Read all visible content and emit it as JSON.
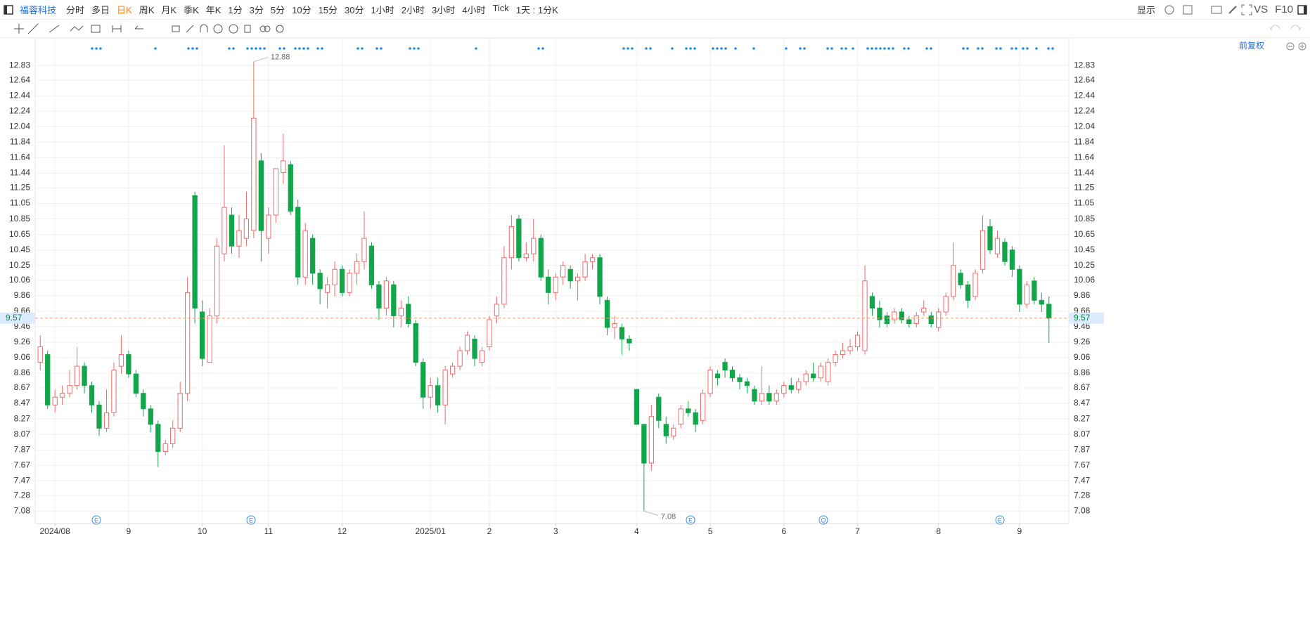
{
  "toolbar": {
    "stock": "福蓉科技",
    "periods": [
      "分时",
      "多日",
      "日K",
      "周K",
      "月K",
      "季K",
      "年K",
      "1分",
      "3分",
      "5分",
      "10分",
      "15分",
      "30分",
      "1小时",
      "2小时",
      "3小时",
      "4小时",
      "Tick"
    ],
    "active": "日K",
    "range": "1天 : 1分K",
    "display": "显示",
    "vs": "VS",
    "f10": "F10",
    "adjust": "前复权"
  },
  "events": [
    "E",
    "E",
    "E",
    "Q",
    "E"
  ],
  "chart_data": {
    "type": "candlestick",
    "up_color": "#ee6b6b",
    "down_color": "#12a54a",
    "price_line_color": "#f0a070",
    "grid": true,
    "ylim": [
      6.92,
      13.24
    ],
    "yticks": [
      7.08,
      7.28,
      7.47,
      7.67,
      7.87,
      8.07,
      8.27,
      8.47,
      8.67,
      8.86,
      9.06,
      9.26,
      9.46,
      9.66,
      9.86,
      10.06,
      10.25,
      10.45,
      10.65,
      10.85,
      11.05,
      11.25,
      11.44,
      11.64,
      11.84,
      12.04,
      12.24,
      12.44,
      12.64,
      12.83
    ],
    "categories": [
      null,
      null,
      "2024/08",
      null,
      null,
      null,
      null,
      null,
      null,
      null,
      null,
      null,
      "9",
      null,
      null,
      null,
      null,
      null,
      null,
      null,
      null,
      null,
      "10",
      null,
      null,
      null,
      null,
      null,
      null,
      null,
      null,
      "11",
      null,
      null,
      null,
      null,
      null,
      null,
      null,
      null,
      null,
      "12",
      null,
      null,
      null,
      null,
      null,
      null,
      null,
      null,
      null,
      null,
      null,
      "2025/01",
      null,
      null,
      null,
      null,
      null,
      null,
      null,
      "2",
      null,
      null,
      null,
      null,
      null,
      null,
      null,
      null,
      "3",
      null,
      null,
      null,
      null,
      null,
      null,
      null,
      null,
      null,
      null,
      "4",
      null,
      null,
      null,
      null,
      null,
      null,
      null,
      null,
      null,
      "5",
      null,
      null,
      null,
      null,
      null,
      null,
      null,
      null,
      null,
      "6",
      null,
      null,
      null,
      null,
      null,
      null,
      null,
      null,
      null,
      "7",
      null,
      null,
      null,
      null,
      null,
      null,
      null,
      null,
      null,
      null,
      "8",
      null,
      null,
      null,
      null,
      null,
      null,
      null,
      null,
      null,
      null,
      "9",
      null,
      null,
      null,
      null
    ],
    "candles": [
      [
        9.0,
        9.35,
        8.9,
        9.2
      ],
      [
        9.1,
        9.15,
        8.4,
        8.45
      ],
      [
        8.45,
        8.65,
        8.35,
        8.55
      ],
      [
        8.55,
        8.7,
        8.45,
        8.6
      ],
      [
        8.6,
        8.9,
        8.55,
        8.7
      ],
      [
        8.7,
        9.2,
        8.65,
        8.95
      ],
      [
        8.95,
        9.0,
        8.6,
        8.7
      ],
      [
        8.7,
        8.75,
        8.35,
        8.45
      ],
      [
        8.45,
        8.5,
        8.05,
        8.15
      ],
      [
        8.15,
        8.65,
        8.1,
        8.35
      ],
      [
        8.35,
        9.0,
        8.3,
        8.9
      ],
      [
        8.95,
        9.35,
        8.85,
        9.1
      ],
      [
        9.1,
        9.15,
        8.8,
        8.85
      ],
      [
        8.85,
        8.9,
        8.55,
        8.6
      ],
      [
        8.6,
        8.65,
        8.3,
        8.4
      ],
      [
        8.4,
        8.45,
        8.1,
        8.2
      ],
      [
        8.2,
        8.25,
        7.65,
        7.85
      ],
      [
        7.85,
        8.0,
        7.8,
        7.95
      ],
      [
        7.95,
        8.25,
        7.9,
        8.15
      ],
      [
        8.15,
        8.75,
        8.1,
        8.6
      ],
      [
        8.6,
        10.1,
        8.5,
        9.9
      ],
      [
        11.15,
        11.2,
        9.5,
        9.7
      ],
      [
        9.65,
        9.8,
        8.95,
        9.05
      ],
      [
        9.0,
        9.7,
        9.0,
        9.6
      ],
      [
        9.6,
        10.6,
        9.5,
        10.5
      ],
      [
        10.4,
        11.8,
        10.3,
        11.0
      ],
      [
        10.9,
        11.0,
        10.4,
        10.5
      ],
      [
        10.5,
        10.9,
        10.35,
        10.7
      ],
      [
        10.6,
        11.2,
        10.5,
        10.85
      ],
      [
        10.7,
        12.88,
        10.6,
        12.15
      ],
      [
        11.6,
        11.7,
        10.3,
        10.7
      ],
      [
        10.6,
        11.0,
        10.4,
        10.9
      ],
      [
        10.9,
        11.5,
        10.8,
        11.5
      ],
      [
        11.45,
        11.95,
        11.3,
        11.6
      ],
      [
        11.55,
        11.6,
        10.9,
        10.95
      ],
      [
        11.0,
        11.1,
        10.0,
        10.1
      ],
      [
        10.1,
        10.8,
        10.0,
        10.7
      ],
      [
        10.6,
        10.65,
        10.0,
        10.15
      ],
      [
        10.15,
        10.2,
        9.75,
        9.95
      ],
      [
        9.9,
        10.1,
        9.7,
        10.0
      ],
      [
        10.0,
        10.3,
        9.85,
        10.2
      ],
      [
        10.2,
        10.25,
        9.85,
        9.9
      ],
      [
        9.9,
        10.2,
        9.85,
        10.15
      ],
      [
        10.15,
        10.4,
        10.0,
        10.3
      ],
      [
        10.3,
        10.95,
        10.2,
        10.6
      ],
      [
        10.5,
        10.55,
        9.95,
        10.0
      ],
      [
        10.0,
        10.05,
        9.55,
        9.7
      ],
      [
        9.7,
        10.1,
        9.6,
        10.05
      ],
      [
        10.0,
        10.05,
        9.45,
        9.6
      ],
      [
        9.6,
        9.8,
        9.45,
        9.7
      ],
      [
        9.75,
        9.85,
        9.45,
        9.5
      ],
      [
        9.5,
        9.55,
        8.95,
        9.0
      ],
      [
        9.0,
        9.05,
        8.4,
        8.55
      ],
      [
        8.55,
        8.8,
        8.4,
        8.7
      ],
      [
        8.7,
        8.8,
        8.35,
        8.45
      ],
      [
        8.45,
        8.95,
        8.2,
        8.9
      ],
      [
        8.85,
        9.0,
        8.8,
        8.95
      ],
      [
        8.95,
        9.2,
        8.9,
        9.15
      ],
      [
        9.15,
        9.4,
        9.1,
        9.35
      ],
      [
        9.3,
        9.35,
        8.95,
        9.05
      ],
      [
        9.0,
        9.2,
        8.95,
        9.15
      ],
      [
        9.2,
        9.6,
        9.15,
        9.55
      ],
      [
        9.6,
        9.85,
        9.5,
        9.75
      ],
      [
        9.75,
        10.5,
        9.7,
        10.35
      ],
      [
        10.35,
        10.9,
        10.2,
        10.75
      ],
      [
        10.85,
        10.9,
        10.3,
        10.35
      ],
      [
        10.35,
        10.55,
        10.3,
        10.4
      ],
      [
        10.4,
        10.85,
        10.3,
        10.6
      ],
      [
        10.6,
        10.65,
        10.05,
        10.1
      ],
      [
        10.1,
        10.2,
        9.75,
        9.9
      ],
      [
        9.9,
        10.15,
        9.8,
        10.1
      ],
      [
        10.1,
        10.3,
        10.0,
        10.25
      ],
      [
        10.2,
        10.25,
        9.95,
        10.05
      ],
      [
        10.05,
        10.15,
        9.8,
        10.1
      ],
      [
        10.1,
        10.4,
        10.05,
        10.3
      ],
      [
        10.3,
        10.4,
        10.2,
        10.35
      ],
      [
        10.35,
        10.4,
        9.75,
        9.85
      ],
      [
        9.8,
        9.85,
        9.35,
        9.45
      ],
      [
        9.45,
        9.6,
        9.3,
        9.5
      ],
      [
        9.45,
        9.5,
        9.1,
        9.3
      ],
      [
        9.3,
        9.35,
        9.15,
        9.25
      ],
      [
        8.65,
        8.65,
        8.2,
        8.2
      ],
      [
        8.2,
        8.2,
        7.08,
        7.7
      ],
      [
        7.7,
        8.45,
        7.6,
        8.3
      ],
      [
        8.55,
        8.6,
        8.15,
        8.25
      ],
      [
        8.2,
        8.3,
        7.95,
        8.05
      ],
      [
        8.05,
        8.2,
        8.0,
        8.15
      ],
      [
        8.2,
        8.45,
        8.15,
        8.4
      ],
      [
        8.4,
        8.5,
        8.3,
        8.35
      ],
      [
        8.35,
        8.4,
        8.1,
        8.2
      ],
      [
        8.25,
        8.65,
        8.2,
        8.6
      ],
      [
        8.6,
        8.95,
        8.55,
        8.9
      ],
      [
        8.85,
        8.9,
        8.7,
        8.8
      ],
      [
        9.0,
        9.05,
        8.8,
        8.9
      ],
      [
        8.9,
        8.95,
        8.75,
        8.8
      ],
      [
        8.8,
        8.85,
        8.65,
        8.75
      ],
      [
        8.75,
        8.8,
        8.6,
        8.7
      ],
      [
        8.65,
        8.7,
        8.45,
        8.5
      ],
      [
        8.5,
        8.95,
        8.45,
        8.6
      ],
      [
        8.6,
        8.7,
        8.45,
        8.5
      ],
      [
        8.5,
        8.65,
        8.45,
        8.6
      ],
      [
        8.6,
        8.75,
        8.55,
        8.7
      ],
      [
        8.7,
        8.8,
        8.6,
        8.65
      ],
      [
        8.65,
        8.8,
        8.6,
        8.75
      ],
      [
        8.75,
        8.9,
        8.7,
        8.85
      ],
      [
        8.85,
        9.0,
        8.75,
        8.8
      ],
      [
        8.8,
        9.0,
        8.75,
        8.95
      ],
      [
        8.75,
        9.05,
        8.7,
        9.0
      ],
      [
        9.0,
        9.15,
        8.95,
        9.1
      ],
      [
        9.1,
        9.25,
        9.05,
        9.15
      ],
      [
        9.15,
        9.3,
        9.1,
        9.2
      ],
      [
        9.2,
        9.4,
        9.15,
        9.35
      ],
      [
        9.15,
        10.25,
        9.1,
        10.05
      ],
      [
        9.85,
        9.9,
        9.6,
        9.7
      ],
      [
        9.7,
        9.8,
        9.45,
        9.55
      ],
      [
        9.6,
        9.65,
        9.45,
        9.5
      ],
      [
        9.55,
        9.7,
        9.5,
        9.65
      ],
      [
        9.65,
        9.7,
        9.5,
        9.55
      ],
      [
        9.55,
        9.6,
        9.45,
        9.5
      ],
      [
        9.5,
        9.65,
        9.45,
        9.6
      ],
      [
        9.65,
        9.8,
        9.6,
        9.7
      ],
      [
        9.6,
        9.65,
        9.45,
        9.5
      ],
      [
        9.45,
        9.7,
        9.4,
        9.65
      ],
      [
        9.65,
        9.9,
        9.6,
        9.85
      ],
      [
        9.85,
        10.55,
        9.8,
        10.25
      ],
      [
        10.15,
        10.2,
        9.95,
        10.0
      ],
      [
        10.0,
        10.05,
        9.7,
        9.8
      ],
      [
        9.85,
        10.2,
        9.8,
        10.15
      ],
      [
        10.2,
        10.9,
        10.15,
        10.7
      ],
      [
        10.75,
        10.85,
        10.4,
        10.45
      ],
      [
        10.4,
        10.7,
        10.35,
        10.6
      ],
      [
        10.55,
        10.6,
        10.25,
        10.3
      ],
      [
        10.45,
        10.5,
        10.1,
        10.2
      ],
      [
        10.2,
        10.25,
        9.65,
        9.75
      ],
      [
        9.75,
        10.05,
        9.7,
        10.0
      ],
      [
        10.05,
        10.1,
        9.75,
        9.8
      ],
      [
        9.8,
        9.9,
        9.65,
        9.75
      ],
      [
        9.75,
        9.85,
        9.25,
        9.57
      ]
    ]
  }
}
